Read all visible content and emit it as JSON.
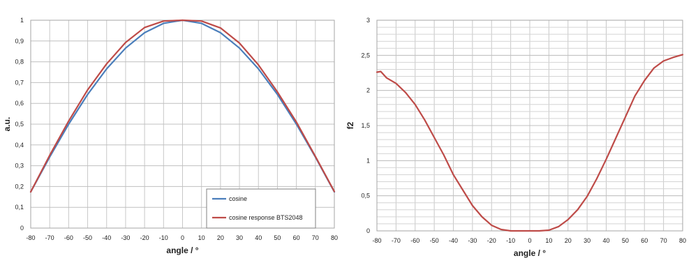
{
  "chart_data": [
    {
      "type": "line",
      "title": "",
      "xlabel": "angle / °",
      "ylabel": "a.u.",
      "xlim": [
        -80,
        80
      ],
      "ylim": [
        0,
        1
      ],
      "xticks": [
        "-80",
        "-70",
        "-60",
        "-50",
        "-40",
        "-30",
        "-20",
        "-10",
        "0",
        "10",
        "20",
        "30",
        "40",
        "50",
        "60",
        "70",
        "80"
      ],
      "yticks": [
        "0",
        "0,1",
        "0,2",
        "0,3",
        "0,4",
        "0,5",
        "0,6",
        "0,7",
        "0,8",
        "0,9",
        "1"
      ],
      "grid": true,
      "legend_position": "bottom-right",
      "x": [
        -80,
        -70,
        -60,
        -50,
        -40,
        -30,
        -20,
        -10,
        0,
        10,
        20,
        30,
        40,
        50,
        60,
        70,
        80
      ],
      "series": [
        {
          "name": "cosine",
          "color": "#4a7ebb",
          "values": [
            0.174,
            0.342,
            0.5,
            0.643,
            0.766,
            0.866,
            0.94,
            0.985,
            1.0,
            0.985,
            0.94,
            0.866,
            0.766,
            0.643,
            0.5,
            0.342,
            0.174
          ]
        },
        {
          "name": "cosine response BTS2048",
          "color": "#be4b48",
          "values": [
            0.174,
            0.35,
            0.515,
            0.665,
            0.79,
            0.893,
            0.965,
            0.996,
            1.0,
            0.996,
            0.963,
            0.89,
            0.785,
            0.655,
            0.51,
            0.345,
            0.176
          ]
        }
      ]
    },
    {
      "type": "line",
      "title": "",
      "xlabel": "angle / °",
      "ylabel": "f2",
      "xlim": [
        -80,
        80
      ],
      "ylim": [
        0,
        3
      ],
      "xticks": [
        "-80",
        "-70",
        "-60",
        "-50",
        "-40",
        "-30",
        "-20",
        "-10",
        "0",
        "10",
        "20",
        "30",
        "40",
        "50",
        "60",
        "70",
        "80"
      ],
      "yticks": [
        "0",
        "0,5",
        "1",
        "1,5",
        "2",
        "2,5",
        "3"
      ],
      "grid": true,
      "x": [
        -80,
        -78,
        -75,
        -70,
        -65,
        -60,
        -55,
        -50,
        -45,
        -40,
        -35,
        -30,
        -25,
        -20,
        -15,
        -10,
        -5,
        0,
        5,
        10,
        15,
        20,
        25,
        30,
        35,
        40,
        45,
        50,
        55,
        60,
        65,
        70,
        75,
        80
      ],
      "series": [
        {
          "name": "f2",
          "color": "#be4b48",
          "values": [
            2.26,
            2.27,
            2.18,
            2.1,
            1.97,
            1.8,
            1.58,
            1.33,
            1.08,
            0.8,
            0.58,
            0.36,
            0.2,
            0.08,
            0.02,
            0.0,
            0.0,
            0.0,
            0.0,
            0.01,
            0.06,
            0.16,
            0.3,
            0.49,
            0.74,
            1.02,
            1.32,
            1.62,
            1.92,
            2.14,
            2.32,
            2.42,
            2.47,
            2.51
          ]
        }
      ]
    }
  ]
}
